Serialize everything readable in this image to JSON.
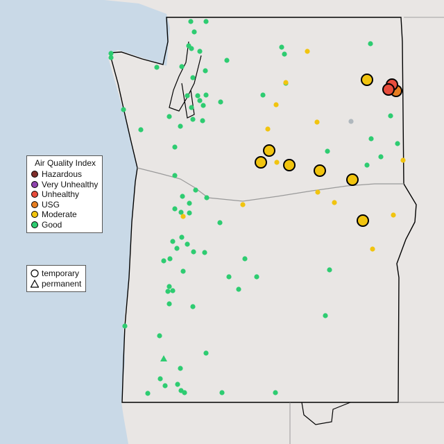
{
  "legend": {
    "title": "Air Quality Index",
    "categories": [
      {
        "label": "Hazardous",
        "color": "#7e2d2a"
      },
      {
        "label": "Very Unhealthy",
        "color": "#8e44ad"
      },
      {
        "label": "Unhealthy",
        "color": "#e74c3c"
      },
      {
        "label": "USG",
        "color": "#e67e22"
      },
      {
        "label": "Moderate",
        "color": "#f1c40f"
      },
      {
        "label": "Good",
        "color": "#2ecc71"
      }
    ]
  },
  "monitor_types": {
    "temporary": {
      "label": "temporary",
      "icon": "circle-icon"
    },
    "permanent": {
      "label": "permanent",
      "icon": "triangle-icon"
    }
  },
  "colors": {
    "ocean": "#c9d9e7",
    "land": "#e9e6e4",
    "border": "#000000"
  }
}
